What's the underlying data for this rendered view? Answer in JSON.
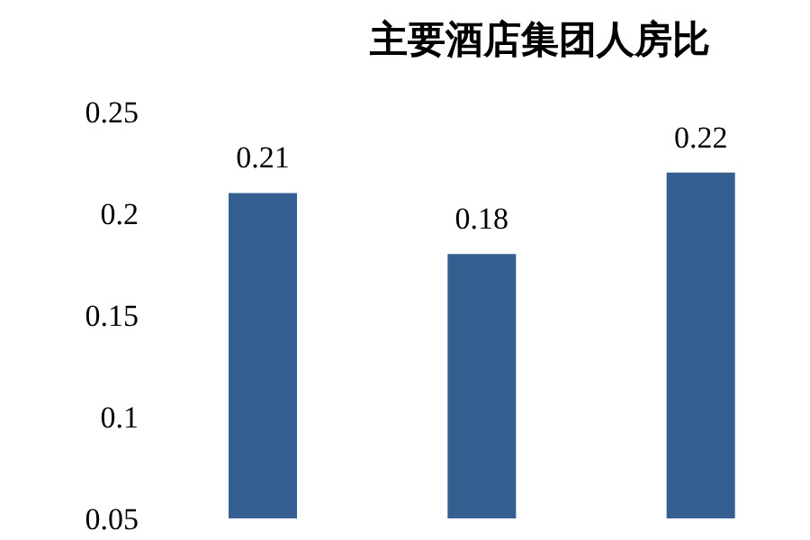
{
  "chart_data": {
    "type": "bar",
    "title": "主要酒店集团人房比",
    "categories": [
      null,
      null,
      null
    ],
    "values": [
      0.21,
      0.18,
      0.22
    ],
    "color": "#355f91",
    "data_labels": true,
    "ylim": [
      0.05,
      0.25
    ],
    "yticks": [
      0.05,
      0.1,
      0.15,
      0.2,
      0.25
    ],
    "tick_labels": "y"
  }
}
